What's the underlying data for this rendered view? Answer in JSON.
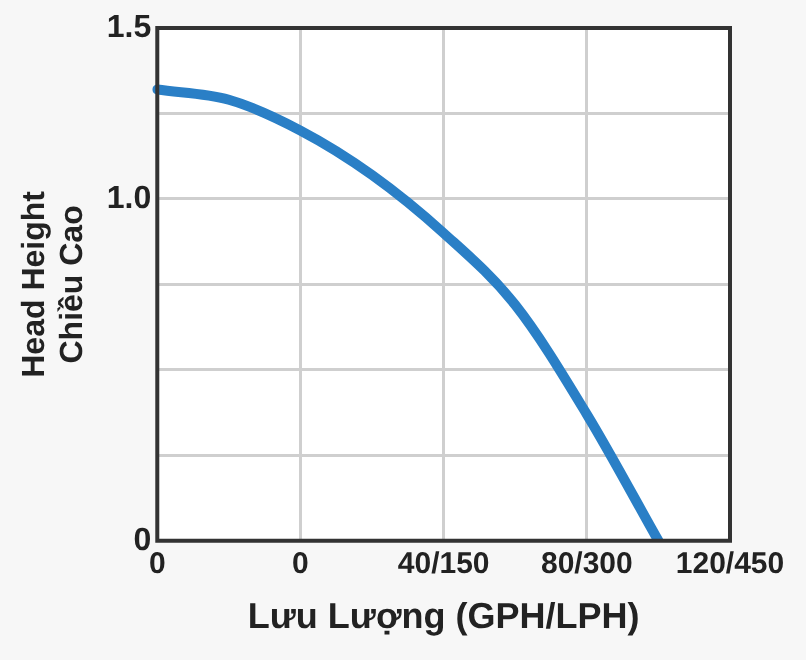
{
  "chart_data": {
    "type": "line",
    "xlabel": "Lưu Lượng (GPH/LPH)",
    "ylabel": "Head Height\nChiều Cao",
    "categories": [
      "0",
      null,
      "0",
      null,
      "40/150",
      null,
      "80/300",
      null,
      "120/450"
    ],
    "series": [
      {
        "color": "#2a7fc6",
        "values": [
          1.32,
          1.29,
          1.2,
          1.07,
          0.9,
          0.69,
          0.37,
          0,
          null
        ]
      }
    ],
    "ylim": [
      0,
      1.5
    ],
    "yticks": [
      0,
      {
        "value": 0.25,
        "label": null
      },
      {
        "value": 0.5,
        "label": null
      },
      {
        "value": 0.75,
        "label": null
      },
      {
        "value": 1,
        "label": "1.0"
      },
      {
        "value": 1.25,
        "label": null
      },
      1.5
    ],
    "grid": true,
    "legend": false,
    "marker": "none",
    "line_style": "solid"
  }
}
